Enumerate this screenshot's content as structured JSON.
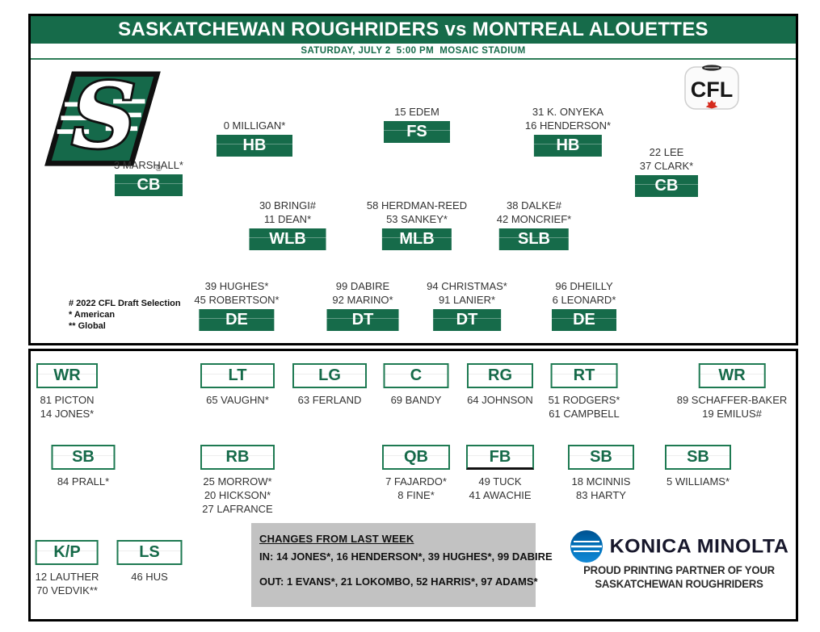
{
  "header": {
    "title": "SASKATCHEWAN ROUGHRIDERS vs MONTREAL ALOUETTES",
    "subtitle": "SATURDAY, JULY 2  5:00 PM  MOSAIC STADIUM"
  },
  "logos": {
    "home_team": "Saskatchewan Roughriders",
    "league_label": "CFL"
  },
  "legend": {
    "lines": [
      "# 2022 CFL Draft Selection",
      "* American",
      "** Global"
    ]
  },
  "defense": {
    "groups": [
      {
        "id": "cb-left",
        "pos": "CB",
        "players": [
          "3 MARSHALL*"
        ]
      },
      {
        "id": "hb-left",
        "pos": "HB",
        "players": [
          "0 MILLIGAN*"
        ]
      },
      {
        "id": "fs",
        "pos": "FS",
        "players": [
          "15 EDEM"
        ]
      },
      {
        "id": "hb-right",
        "pos": "HB",
        "players": [
          "31 K. ONYEKA",
          "16 HENDERSON*"
        ]
      },
      {
        "id": "cb-right",
        "pos": "CB",
        "players": [
          "22 LEE",
          "37 CLARK*"
        ]
      },
      {
        "id": "wlb",
        "pos": "WLB",
        "players": [
          "30 BRINGI#",
          "11 DEAN*"
        ]
      },
      {
        "id": "mlb",
        "pos": "MLB",
        "players": [
          "58 HERDMAN-REED",
          "53 SANKEY*"
        ]
      },
      {
        "id": "slb",
        "pos": "SLB",
        "players": [
          "38 DALKE#",
          "42 MONCRIEF*"
        ]
      },
      {
        "id": "de-left",
        "pos": "DE",
        "players": [
          "39 HUGHES*",
          "45 ROBERTSON*"
        ]
      },
      {
        "id": "dt-left",
        "pos": "DT",
        "players": [
          "99 DABIRE",
          "92 MARINO*"
        ]
      },
      {
        "id": "dt-right",
        "pos": "DT",
        "players": [
          "94 CHRISTMAS*",
          "91 LANIER*"
        ]
      },
      {
        "id": "de-right",
        "pos": "DE",
        "players": [
          "96 DHEILLY",
          "6 LEONARD*"
        ]
      }
    ]
  },
  "offense": {
    "groups": [
      {
        "id": "wr-left",
        "pos": "WR",
        "players": [
          "81 PICTON",
          "14 JONES*"
        ]
      },
      {
        "id": "lt",
        "pos": "LT",
        "players": [
          "65 VAUGHN*"
        ]
      },
      {
        "id": "lg",
        "pos": "LG",
        "players": [
          "63 FERLAND"
        ]
      },
      {
        "id": "c",
        "pos": "C",
        "players": [
          "69 BANDY"
        ]
      },
      {
        "id": "rg",
        "pos": "RG",
        "players": [
          "64 JOHNSON"
        ]
      },
      {
        "id": "rt",
        "pos": "RT",
        "players": [
          "51 RODGERS*",
          "61 CAMPBELL"
        ]
      },
      {
        "id": "wr-right",
        "pos": "WR",
        "players": [
          "89 SCHAFFER-BAKER",
          "19 EMILUS#"
        ]
      },
      {
        "id": "sb-left",
        "pos": "SB",
        "players": [
          "84 PRALL*"
        ]
      },
      {
        "id": "rb",
        "pos": "RB",
        "players": [
          "25 MORROW*",
          "20 HICKSON*",
          "27 LAFRANCE"
        ]
      },
      {
        "id": "qb",
        "pos": "QB",
        "players": [
          "7 FAJARDO*",
          "8 FINE*"
        ]
      },
      {
        "id": "fb",
        "pos": "FB",
        "players": [
          "49 TUCK",
          "41 AWACHIE"
        ],
        "black_bottom": true
      },
      {
        "id": "sb-mid",
        "pos": "SB",
        "players": [
          "18 MCINNIS",
          "83 HARTY"
        ]
      },
      {
        "id": "sb-right",
        "pos": "SB",
        "players": [
          "5 WILLIAMS*"
        ]
      },
      {
        "id": "kp",
        "pos": "K/P",
        "players": [
          "12 LAUTHER",
          "70 VEDVIK**"
        ]
      },
      {
        "id": "ls",
        "pos": "LS",
        "players": [
          "46 HUS"
        ]
      }
    ]
  },
  "changes": {
    "title": "CHANGES FROM LAST WEEK",
    "in_line": "IN: 14 JONES*, 16 HENDERSON*, 39 HUGHES*, 99 DABIRE",
    "out_line": "OUT: 1 EVANS*, 21 LOKOMBO, 52 HARRIS*, 97 ADAMS*"
  },
  "sponsor": {
    "name": "KONICA MINOLTA",
    "tagline_line1": "PROUD PRINTING PARTNER OF YOUR",
    "tagline_line2": "SASKATCHEWAN ROUGHRIDERS"
  },
  "colors": {
    "riders_green": "#166B4A",
    "box_border_green": "#1E7A52",
    "gray_panel": "#C2C2C2",
    "konica_blue": "#0072BC",
    "maple_red": "#D52B1E",
    "text_dark": "#2B2B2B"
  }
}
